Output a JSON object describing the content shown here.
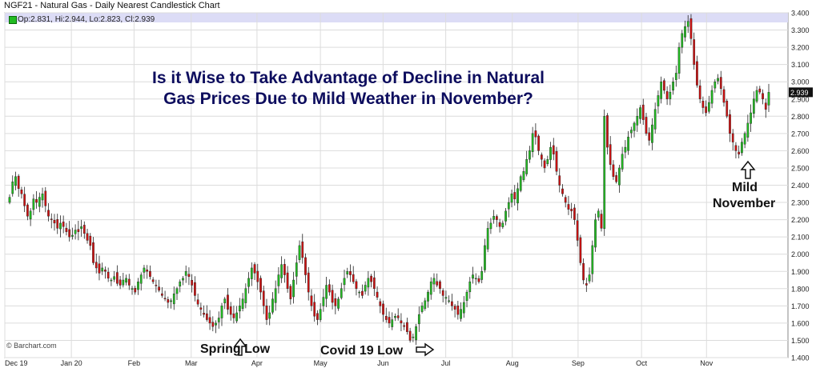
{
  "header": {
    "title": "NGF21 - Natural Gas - Daily Nearest Candlestick Chart"
  },
  "ohlc_readout": "Op:2.831, Hi:2.944, Lo:2.823, Cl:2.939",
  "headline": {
    "line1": "Is it Wise to Take Advantage of Decline in Natural",
    "line2": "Gas Prices Due to Mild Weather in November?"
  },
  "annotations": {
    "spring_low": "Spring Low",
    "covid_low": "Covid 19 Low",
    "mild_line1": "Mild",
    "mild_line2": "November"
  },
  "watermark": "© Barchart.com",
  "colors": {
    "up": "#22bb22",
    "down": "#cc1111",
    "grid": "#dcdcdc",
    "last_price_bg": "#111111",
    "top_band": "#dcdcf6"
  },
  "chart_data": {
    "type": "candlestick",
    "ylim": [
      1.4,
      3.4
    ],
    "yticks": [
      "1.400",
      "1.500",
      "1.600",
      "1.700",
      "1.800",
      "1.900",
      "2.000",
      "2.100",
      "2.200",
      "2.300",
      "2.400",
      "2.500",
      "2.600",
      "2.700",
      "2.800",
      "2.900",
      "3.000",
      "3.100",
      "3.200",
      "3.300",
      "3.400"
    ],
    "xticks": [
      "Dec 19",
      "Jan 20",
      "Feb",
      "Mar",
      "Apr",
      "May",
      "Jun",
      "Jul",
      "Aug",
      "Sep",
      "Oct",
      "Nov"
    ],
    "last_price": "2.939",
    "closes": [
      2.33,
      2.42,
      2.45,
      2.38,
      2.35,
      2.28,
      2.22,
      2.25,
      2.32,
      2.3,
      2.33,
      2.35,
      2.28,
      2.22,
      2.2,
      2.18,
      2.15,
      2.18,
      2.16,
      2.13,
      2.1,
      2.11,
      2.14,
      2.13,
      2.16,
      2.12,
      2.08,
      2.05,
      1.95,
      1.92,
      1.89,
      1.92,
      1.9,
      1.86,
      1.85,
      1.87,
      1.83,
      1.82,
      1.85,
      1.86,
      1.82,
      1.8,
      1.78,
      1.84,
      1.88,
      1.92,
      1.9,
      1.87,
      1.84,
      1.82,
      1.79,
      1.76,
      1.74,
      1.72,
      1.73,
      1.77,
      1.8,
      1.84,
      1.86,
      1.9,
      1.87,
      1.82,
      1.76,
      1.71,
      1.68,
      1.65,
      1.62,
      1.6,
      1.58,
      1.6,
      1.63,
      1.7,
      1.74,
      1.68,
      1.65,
      1.63,
      1.66,
      1.7,
      1.74,
      1.8,
      1.86,
      1.92,
      1.89,
      1.84,
      1.78,
      1.7,
      1.62,
      1.66,
      1.74,
      1.8,
      1.88,
      1.94,
      1.88,
      1.8,
      1.74,
      1.85,
      1.95,
      2.05,
      1.98,
      1.88,
      1.78,
      1.7,
      1.64,
      1.62,
      1.68,
      1.75,
      1.82,
      1.78,
      1.72,
      1.7,
      1.74,
      1.8,
      1.86,
      1.9,
      1.88,
      1.84,
      1.8,
      1.78,
      1.76,
      1.82,
      1.86,
      1.84,
      1.8,
      1.75,
      1.7,
      1.65,
      1.62,
      1.6,
      1.62,
      1.64,
      1.63,
      1.6,
      1.58,
      1.55,
      1.5,
      1.52,
      1.58,
      1.65,
      1.7,
      1.73,
      1.78,
      1.84,
      1.86,
      1.82,
      1.8,
      1.76,
      1.75,
      1.73,
      1.7,
      1.68,
      1.65,
      1.68,
      1.72,
      1.78,
      1.84,
      1.88,
      1.86,
      1.84,
      1.9,
      2.05,
      2.15,
      2.18,
      2.22,
      2.2,
      2.16,
      2.18,
      2.25,
      2.3,
      2.35,
      2.32,
      2.38,
      2.45,
      2.48,
      2.55,
      2.6,
      2.7,
      2.68,
      2.6,
      2.55,
      2.5,
      2.55,
      2.62,
      2.58,
      2.48,
      2.4,
      2.35,
      2.3,
      2.26,
      2.25,
      2.2,
      2.08,
      1.95,
      1.85,
      1.82,
      1.88,
      2.05,
      2.2,
      2.25,
      2.15,
      2.8,
      2.62,
      2.52,
      2.45,
      2.42,
      2.5,
      2.58,
      2.62,
      2.68,
      2.72,
      2.76,
      2.8,
      2.85,
      2.78,
      2.7,
      2.66,
      2.75,
      2.84,
      2.92,
      3.0,
      2.95,
      2.9,
      2.94,
      3.0,
      3.05,
      3.2,
      3.28,
      3.32,
      3.35,
      3.25,
      3.1,
      2.98,
      2.9,
      2.85,
      2.82,
      2.88,
      2.95,
      3.0,
      3.02,
      2.96,
      2.88,
      2.8,
      2.7,
      2.65,
      2.6,
      2.58,
      2.65,
      2.7,
      2.76,
      2.82,
      2.9,
      2.95,
      2.94,
      2.9,
      2.84,
      2.939
    ]
  }
}
